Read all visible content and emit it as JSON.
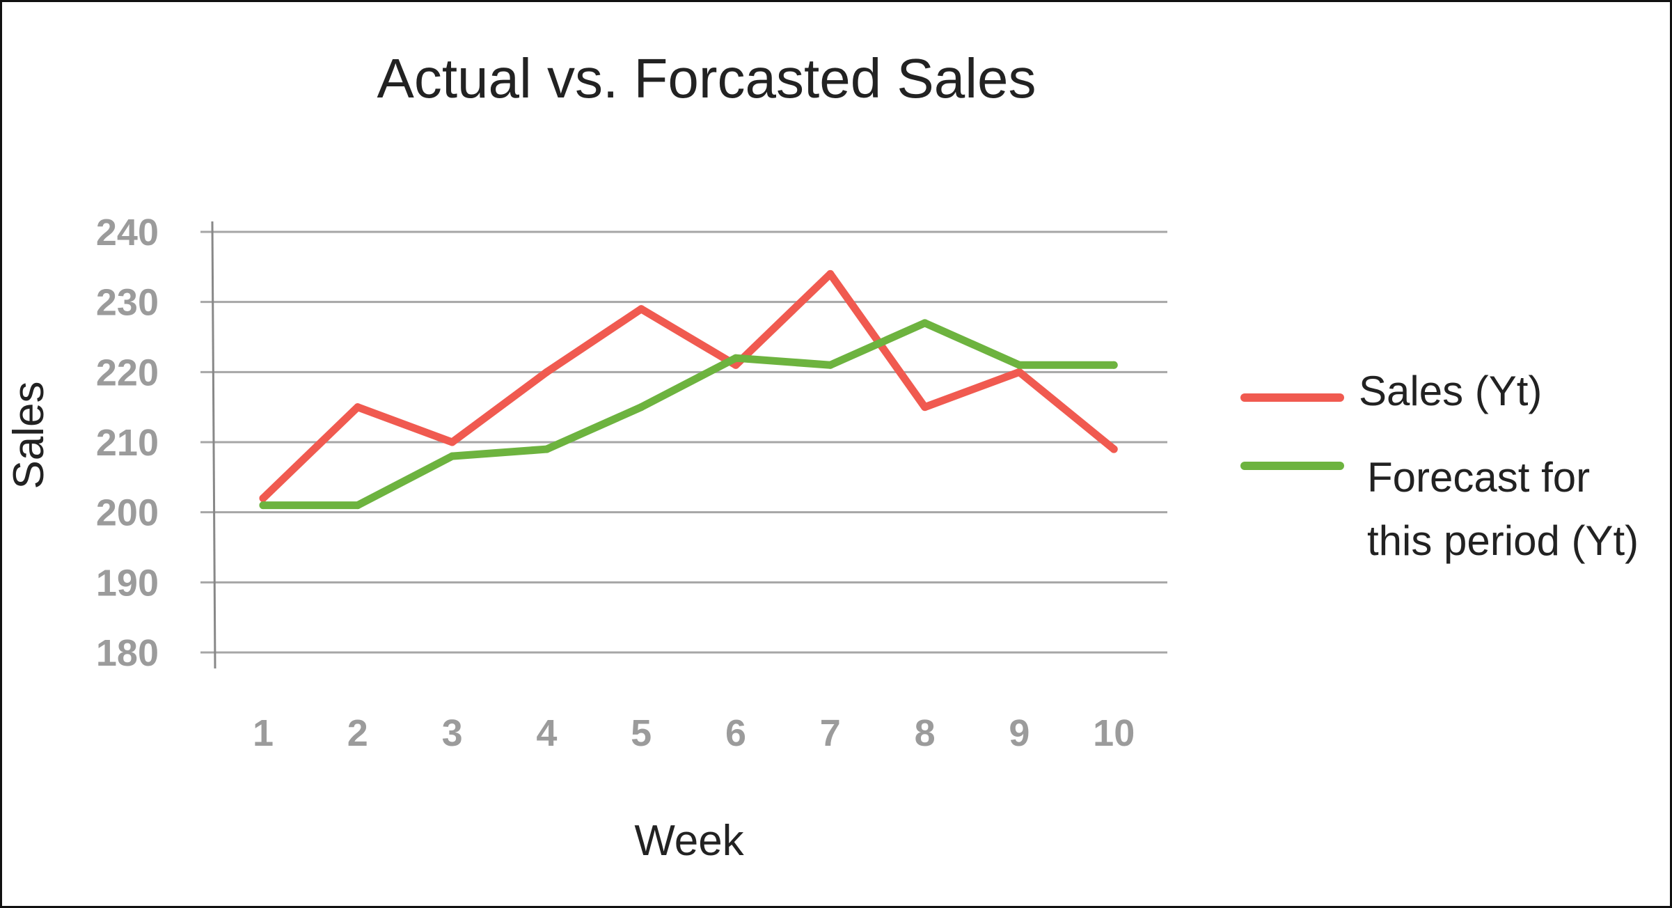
{
  "chart_data": {
    "type": "line",
    "title": "Actual vs. Forcasted Sales",
    "xlabel": "Week",
    "ylabel": "Sales",
    "categories": [
      "1",
      "2",
      "3",
      "4",
      "5",
      "6",
      "7",
      "8",
      "9",
      "10"
    ],
    "y_ticks": [
      "240",
      "230",
      "220",
      "210",
      "200",
      "190",
      "180"
    ],
    "ylim": [
      180,
      240
    ],
    "grid": true,
    "legend_position": "right",
    "series": [
      {
        "name": "Sales (Yt)",
        "color": "#f05a50",
        "values": [
          202,
          215,
          210,
          220,
          229,
          221,
          234,
          215,
          220,
          209
        ]
      },
      {
        "name": "Forecast for\nthis period (Yt)",
        "name_lines": [
          "Forecast for",
          "this period (Yt)"
        ],
        "color": "#6db33f",
        "values": [
          201,
          201,
          208,
          209,
          215,
          222,
          221,
          227,
          221,
          221
        ]
      }
    ]
  }
}
